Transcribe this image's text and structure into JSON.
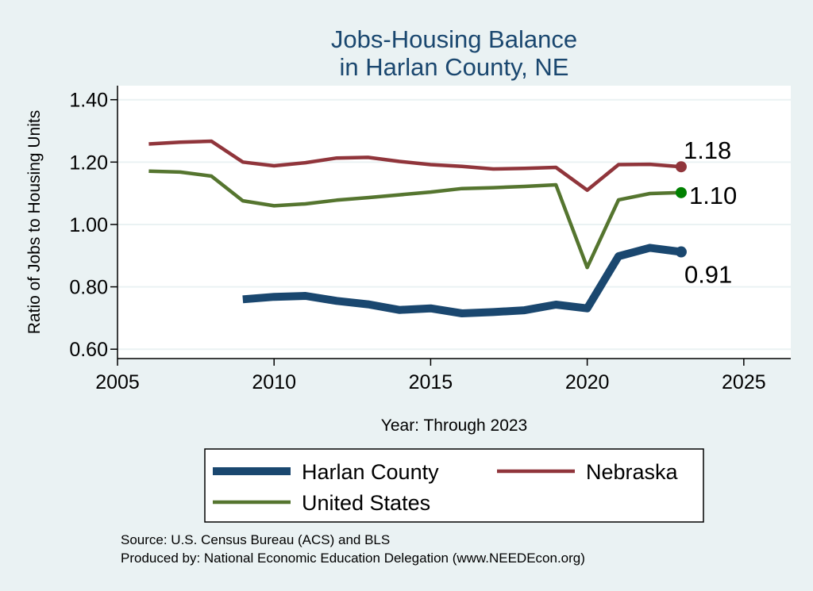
{
  "chart_data": {
    "type": "line",
    "title": [
      "Jobs-Housing Balance",
      "in Harlan County, NE"
    ],
    "xlabel": "Year: Through 2023",
    "ylabel": "Ratio of Jobs to Housing Units",
    "xlim": [
      2005,
      2026.5
    ],
    "ylim": [
      0.57,
      1.445
    ],
    "xticks": [
      "2005",
      "2010",
      "2015",
      "2020",
      "2025"
    ],
    "yticks": [
      "0.60",
      "0.80",
      "1.00",
      "1.20",
      "1.40"
    ],
    "grid": true,
    "legend_position": "bottom",
    "series": [
      {
        "name": "Harlan County",
        "color": "#1A476F",
        "end_label": "0.91",
        "x": [
          2009,
          2010,
          2011,
          2012,
          2013,
          2014,
          2015,
          2016,
          2017,
          2018,
          2019,
          2020,
          2021,
          2022,
          2023
        ],
        "y": [
          0.76,
          0.768,
          0.771,
          0.755,
          0.744,
          0.726,
          0.731,
          0.715,
          0.719,
          0.725,
          0.743,
          0.731,
          0.898,
          0.925,
          0.912
        ]
      },
      {
        "name": "Nebraska",
        "color": "#90353B",
        "end_label": "1.18",
        "x": [
          2006,
          2007,
          2008,
          2009,
          2010,
          2011,
          2012,
          2013,
          2014,
          2015,
          2016,
          2017,
          2018,
          2019,
          2020,
          2021,
          2022,
          2023
        ],
        "y": [
          1.258,
          1.264,
          1.267,
          1.2,
          1.188,
          1.198,
          1.213,
          1.215,
          1.202,
          1.192,
          1.186,
          1.178,
          1.18,
          1.183,
          1.11,
          1.192,
          1.193,
          1.185
        ]
      },
      {
        "name": "United States",
        "color": "#55752F",
        "end_label": "1.10",
        "x": [
          2006,
          2007,
          2008,
          2009,
          2010,
          2011,
          2012,
          2013,
          2014,
          2015,
          2016,
          2017,
          2018,
          2019,
          2020,
          2021,
          2022,
          2023
        ],
        "y": [
          1.171,
          1.168,
          1.155,
          1.076,
          1.06,
          1.066,
          1.078,
          1.086,
          1.095,
          1.104,
          1.115,
          1.118,
          1.122,
          1.127,
          0.862,
          1.079,
          1.099,
          1.102
        ]
      }
    ],
    "source_lines": [
      "Source: U.S. Census Bureau (ACS) and BLS",
      "Produced by: National Economic Education Delegation (www.NEEDEcon.org)"
    ]
  },
  "colors": {
    "background": "#EAF2F3",
    "plot_background": "#FFFFFF",
    "title": "#1A476F",
    "gridline": "#EAF2F3",
    "end_marker_united_states": "#008000"
  }
}
